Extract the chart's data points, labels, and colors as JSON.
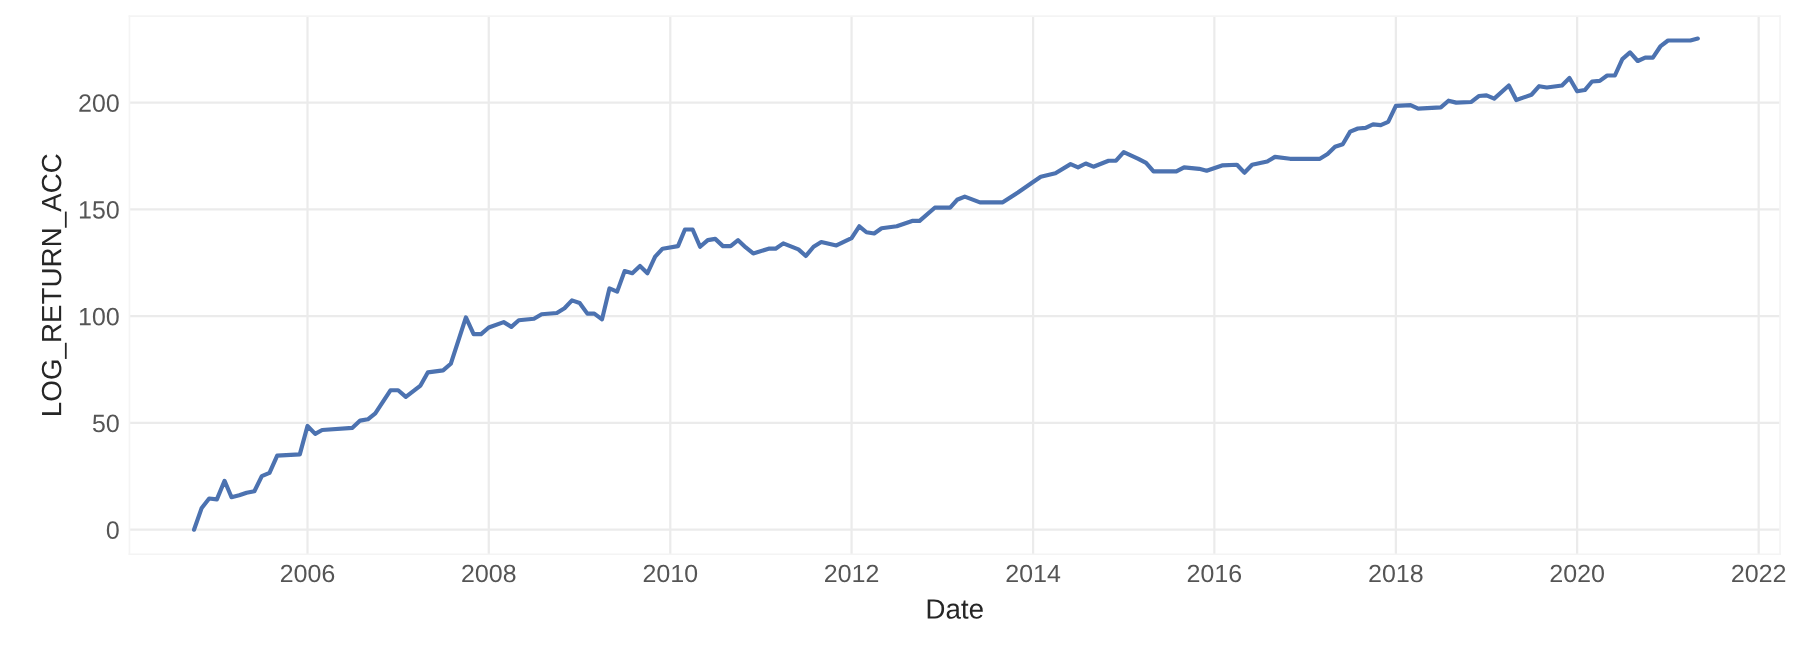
{
  "chart_data": {
    "type": "line",
    "xlabel": "Date",
    "ylabel": "LOG_RETURN_ACC",
    "x": [
      "2004-10",
      "2004-11",
      "2004-12",
      "2005-01",
      "2005-02",
      "2005-03",
      "2005-04",
      "2005-05",
      "2005-06",
      "2005-07",
      "2005-08",
      "2005-09",
      "2005-12",
      "2006-01",
      "2006-02",
      "2006-03",
      "2006-07",
      "2006-08",
      "2006-09",
      "2006-10",
      "2006-12",
      "2007-01",
      "2007-02",
      "2007-04",
      "2007-05",
      "2007-07",
      "2007-08",
      "2007-10",
      "2007-11",
      "2007-12",
      "2008-01",
      "2008-03",
      "2008-04",
      "2008-05",
      "2008-07",
      "2008-08",
      "2008-10",
      "2008-11",
      "2008-12",
      "2009-01",
      "2009-02",
      "2009-03",
      "2009-04",
      "2009-05",
      "2009-06",
      "2009-07",
      "2009-08",
      "2009-09",
      "2009-10",
      "2009-11",
      "2009-12",
      "2010-02",
      "2010-03",
      "2010-04",
      "2010-05",
      "2010-06",
      "2010-07",
      "2010-08",
      "2010-09",
      "2010-10",
      "2010-11",
      "2010-12",
      "2011-02",
      "2011-03",
      "2011-04",
      "2011-06",
      "2011-07",
      "2011-08",
      "2011-09",
      "2011-11",
      "2012-01",
      "2012-02",
      "2012-03",
      "2012-04",
      "2012-05",
      "2012-07",
      "2012-09",
      "2012-10",
      "2012-12",
      "2013-02",
      "2013-03",
      "2013-04",
      "2013-06",
      "2013-09",
      "2013-11",
      "2014-01",
      "2014-02",
      "2014-04",
      "2014-06",
      "2014-07",
      "2014-08",
      "2014-09",
      "2014-11",
      "2014-12",
      "2015-01",
      "2015-03",
      "2015-04",
      "2015-05",
      "2015-08",
      "2015-09",
      "2015-11",
      "2015-12",
      "2016-02",
      "2016-04",
      "2016-05",
      "2016-06",
      "2016-08",
      "2016-09",
      "2016-11",
      "2017-03",
      "2017-04",
      "2017-05",
      "2017-06",
      "2017-07",
      "2017-08",
      "2017-09",
      "2017-10",
      "2017-11",
      "2017-12",
      "2018-01",
      "2018-03",
      "2018-04",
      "2018-07",
      "2018-08",
      "2018-09",
      "2018-11",
      "2018-12",
      "2019-01",
      "2019-02",
      "2019-04",
      "2019-05",
      "2019-07",
      "2019-08",
      "2019-09",
      "2019-11",
      "2019-12",
      "2020-01",
      "2020-02",
      "2020-03",
      "2020-04",
      "2020-05",
      "2020-06",
      "2020-07",
      "2020-08",
      "2020-09",
      "2020-10",
      "2020-11",
      "2020-12",
      "2021-01",
      "2021-04",
      "2021-05"
    ],
    "series": [
      {
        "color": "#4c72b0",
        "values": [
          0,
          10.2,
          14.6,
          14.2,
          22.9,
          15.2,
          16.1,
          17.3,
          18.0,
          25.1,
          26.6,
          34.7,
          35.3,
          48.6,
          44.9,
          46.7,
          47.7,
          51.1,
          51.7,
          54.5,
          65.3,
          65.3,
          62.2,
          67.5,
          73.7,
          74.6,
          77.7,
          99.4,
          91.6,
          91.6,
          94.7,
          97.2,
          95.0,
          98.1,
          98.8,
          100.9,
          101.5,
          103.7,
          107.4,
          106.2,
          101.2,
          101.2,
          98.5,
          113.0,
          111.5,
          121.1,
          120.1,
          123.5,
          120.1,
          127.9,
          131.6,
          132.8,
          140.6,
          140.6,
          132.5,
          135.6,
          136.2,
          132.8,
          132.8,
          135.6,
          132.2,
          129.4,
          131.6,
          131.6,
          134.1,
          131.3,
          128.2,
          132.5,
          134.7,
          133.1,
          136.5,
          142.1,
          139.3,
          138.7,
          141.2,
          142.1,
          144.6,
          144.6,
          150.8,
          150.8,
          154.5,
          156.0,
          153.3,
          153.3,
          157.9,
          162.8,
          165.3,
          166.9,
          171.2,
          169.7,
          171.5,
          170.0,
          172.8,
          172.8,
          176.8,
          173.7,
          171.8,
          167.8,
          167.8,
          169.7,
          169.0,
          168.1,
          170.6,
          170.9,
          167.2,
          170.9,
          172.4,
          174.6,
          173.7,
          173.7,
          175.9,
          179.3,
          180.5,
          186.4,
          187.9,
          188.2,
          189.8,
          189.5,
          191.0,
          198.5,
          198.8,
          197.2,
          197.8,
          200.9,
          200.0,
          200.3,
          203.1,
          203.4,
          201.9,
          208.0,
          201.2,
          203.7,
          207.7,
          207.1,
          208.0,
          211.5,
          205.3,
          205.9,
          209.9,
          210.2,
          212.7,
          212.7,
          220.4,
          223.5,
          219.5,
          221.1,
          221.1,
          226.3,
          229.1,
          229.1,
          230.0
        ]
      }
    ],
    "xlim": [
      "2004-01-15",
      "2022-03-28"
    ],
    "xticks": [
      {
        "value": "2006-01-01",
        "label": "2006"
      },
      {
        "value": "2008-01-01",
        "label": "2008"
      },
      {
        "value": "2010-01-01",
        "label": "2010"
      },
      {
        "value": "2012-01-01",
        "label": "2012"
      },
      {
        "value": "2014-01-01",
        "label": "2014"
      },
      {
        "value": "2016-01-01",
        "label": "2016"
      },
      {
        "value": "2018-01-01",
        "label": "2018"
      },
      {
        "value": "2020-01-01",
        "label": "2020"
      },
      {
        "value": "2022-01-01",
        "label": "2022"
      }
    ],
    "ylim": [
      -11.5,
      240.5
    ],
    "yticks": [
      0,
      50,
      100,
      150,
      200
    ],
    "grid": true,
    "marker": "none",
    "line_style": "solid"
  }
}
